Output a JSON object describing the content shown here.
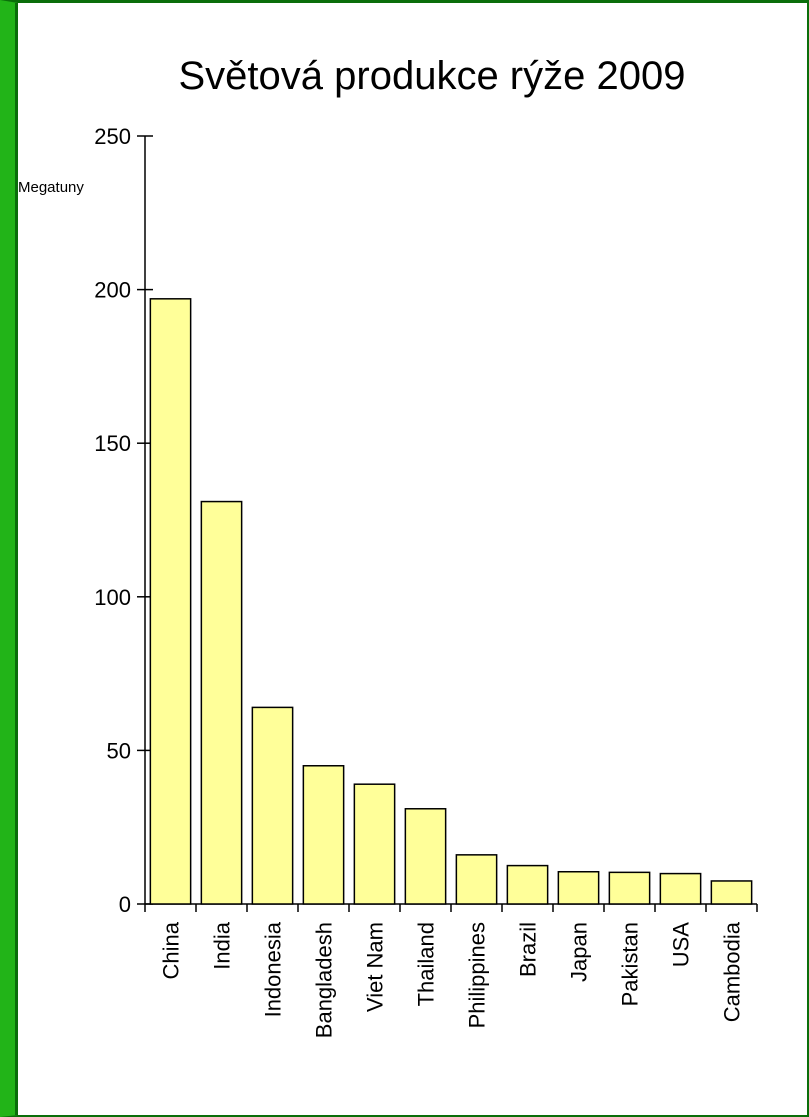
{
  "colors": {
    "bar_fill": "#ffff99",
    "bar_stroke": "#000000",
    "frame_outer": "#0a6e0a",
    "frame_left": "#22b418"
  },
  "chart_data": {
    "type": "bar",
    "title": "Světová produkce rýže 2009",
    "ylabel": "Megatuny",
    "xlabel": "",
    "categories": [
      "China",
      "India",
      "Indonesia",
      "Bangladesh",
      "Viet Nam",
      "Thailand",
      "Philippines",
      "Brazil",
      "Japan",
      "Pakistan",
      "USA",
      "Cambodia"
    ],
    "values": [
      197,
      131,
      64,
      45,
      39,
      31,
      16,
      12.5,
      10.5,
      10.3,
      9.9,
      7.5
    ],
    "ylim": [
      0,
      250
    ],
    "yticks": [
      "0",
      "50",
      "100",
      "150",
      "200",
      "250"
    ],
    "grid": false,
    "legend": "none"
  }
}
